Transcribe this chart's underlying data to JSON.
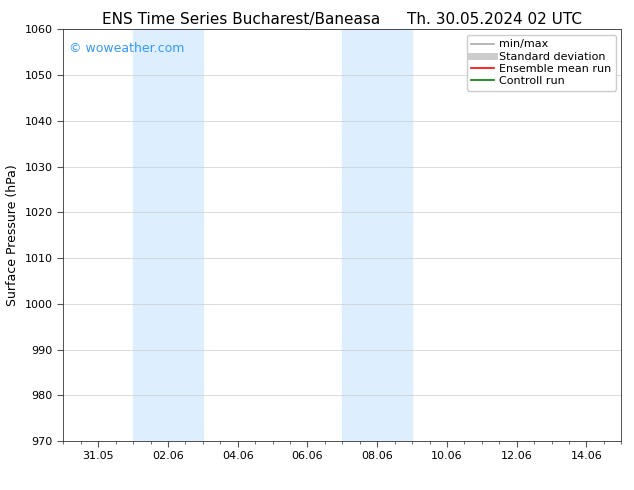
{
  "title_left": "ENS Time Series Bucharest/Baneasa",
  "title_right": "Th. 30.05.2024 02 UTC",
  "ylabel": "Surface Pressure (hPa)",
  "ylim": [
    970,
    1060
  ],
  "yticks": [
    970,
    980,
    990,
    1000,
    1010,
    1020,
    1030,
    1040,
    1050,
    1060
  ],
  "xtick_labels": [
    "31.05",
    "02.06",
    "04.06",
    "06.06",
    "08.06",
    "10.06",
    "12.06",
    "14.06"
  ],
  "xtick_positions": [
    0,
    2,
    4,
    6,
    8,
    10,
    12,
    14
  ],
  "xlim": [
    -1,
    15
  ],
  "shade_bands": [
    {
      "x_start": 1,
      "x_end": 3,
      "color": "#ddeeff"
    },
    {
      "x_start": 7,
      "x_end": 9,
      "color": "#ddeeff"
    }
  ],
  "watermark_text": "© woweather.com",
  "watermark_color": "#3399ff",
  "legend_items": [
    {
      "label": "min/max",
      "color": "#aaaaaa",
      "lw": 1.2,
      "style": "solid"
    },
    {
      "label": "Standard deviation",
      "color": "#cccccc",
      "lw": 5,
      "style": "solid"
    },
    {
      "label": "Ensemble mean run",
      "color": "red",
      "lw": 1.2,
      "style": "solid"
    },
    {
      "label": "Controll run",
      "color": "green",
      "lw": 1.2,
      "style": "solid"
    }
  ],
  "background_color": "#ffffff",
  "grid_color": "#cccccc",
  "title_fontsize": 11,
  "axis_label_fontsize": 9,
  "tick_fontsize": 8,
  "watermark_fontsize": 9,
  "legend_fontsize": 8
}
